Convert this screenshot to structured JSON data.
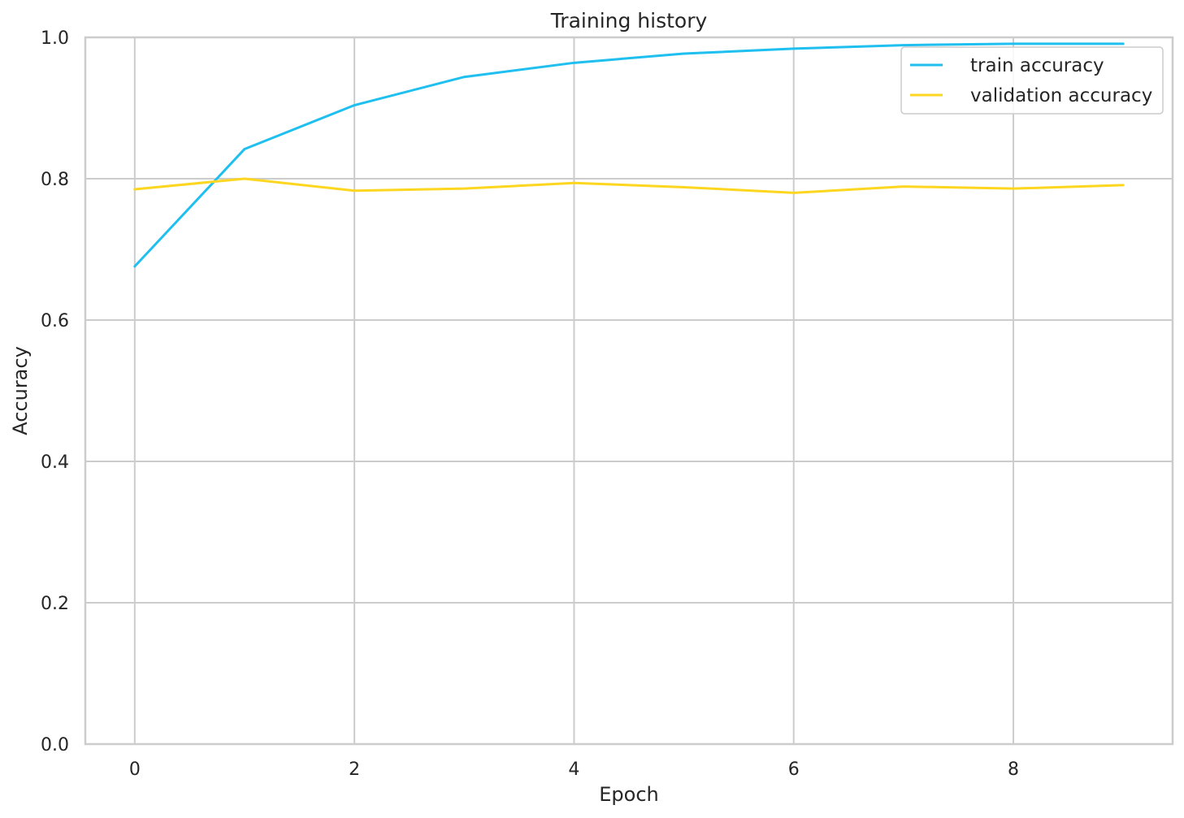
{
  "chart_data": {
    "type": "line",
    "title": "Training history",
    "xlabel": "Epoch",
    "ylabel": "Accuracy",
    "x": [
      0,
      1,
      2,
      3,
      4,
      5,
      6,
      7,
      8,
      9
    ],
    "xlim": [
      -0.45,
      9.45
    ],
    "ylim": [
      0.0,
      1.0
    ],
    "xticks": [
      0,
      2,
      4,
      6,
      8
    ],
    "xtick_labels": [
      "0",
      "2",
      "4",
      "6",
      "8"
    ],
    "yticks": [
      0.0,
      0.2,
      0.4,
      0.6,
      0.8,
      1.0
    ],
    "ytick_labels": [
      "0.0",
      "0.2",
      "0.4",
      "0.6",
      "0.8",
      "1.0"
    ],
    "grid": true,
    "legend_position": "top-right",
    "series": [
      {
        "name": "train accuracy",
        "color": "#1fbfef",
        "values": [
          0.676,
          0.842,
          0.904,
          0.944,
          0.964,
          0.977,
          0.984,
          0.989,
          0.991,
          0.991
        ]
      },
      {
        "name": "validation accuracy",
        "color": "#fdd620",
        "values": [
          0.785,
          0.8,
          0.783,
          0.786,
          0.794,
          0.788,
          0.78,
          0.789,
          0.786,
          0.791
        ]
      }
    ]
  }
}
